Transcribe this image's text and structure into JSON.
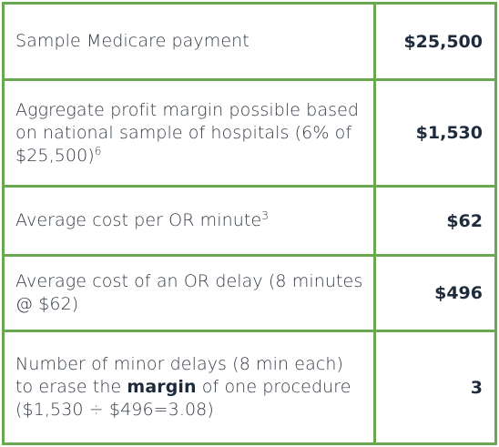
{
  "rows": [
    {
      "label": "Sample Medicare payment",
      "sup": "",
      "value": "$25,500"
    },
    {
      "label": "Aggregate profit margin possible based on national sample of hospitals (6% of $25,500)",
      "sup": "6",
      "value": "$1,530"
    },
    {
      "label": "Average cost per OR minute",
      "sup": "3",
      "value": "$62"
    },
    {
      "label": "Average cost of an OR delay (8 minutes @ $62)",
      "sup": "",
      "value": "$496"
    },
    {
      "label_pre": "Number of minor delays (8 min each) to erase the ",
      "label_emph": "margin",
      "label_post": " of one procedure ($1,530 ÷ $496=3.08)",
      "value": "3"
    }
  ]
}
